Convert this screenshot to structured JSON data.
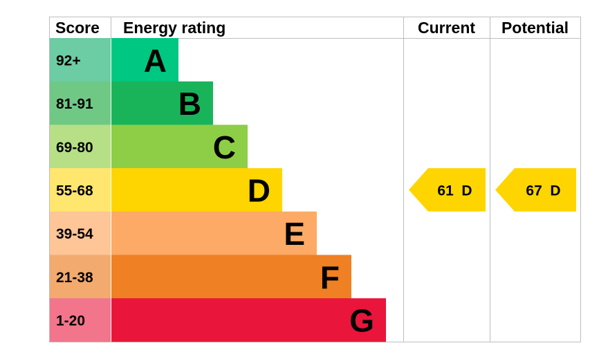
{
  "chart_data": {
    "type": "table",
    "headers": {
      "score": "Score",
      "rating": "Energy rating",
      "current": "Current",
      "potential": "Potential"
    },
    "bands": [
      {
        "score": "92+",
        "letter": "A",
        "score_color": "#6ccca3",
        "bar_color": "#00c781"
      },
      {
        "score": "81-91",
        "letter": "B",
        "score_color": "#6fc985",
        "bar_color": "#19b459"
      },
      {
        "score": "69-80",
        "letter": "C",
        "score_color": "#b6df86",
        "bar_color": "#8dce46"
      },
      {
        "score": "55-68",
        "letter": "D",
        "score_color": "#ffe66f",
        "bar_color": "#ffd500"
      },
      {
        "score": "39-54",
        "letter": "E",
        "score_color": "#fec597",
        "bar_color": "#fcaa65"
      },
      {
        "score": "21-38",
        "letter": "F",
        "score_color": "#f3aa6f",
        "bar_color": "#ef8023"
      },
      {
        "score": "1-20",
        "letter": "G",
        "score_color": "#f2758c",
        "bar_color": "#e9153b"
      }
    ],
    "current": {
      "value": 61,
      "letter": "D",
      "label": "61  D",
      "color": "#ffd500"
    },
    "potential": {
      "value": 67,
      "letter": "D",
      "label": "67  D",
      "color": "#ffd500"
    }
  }
}
